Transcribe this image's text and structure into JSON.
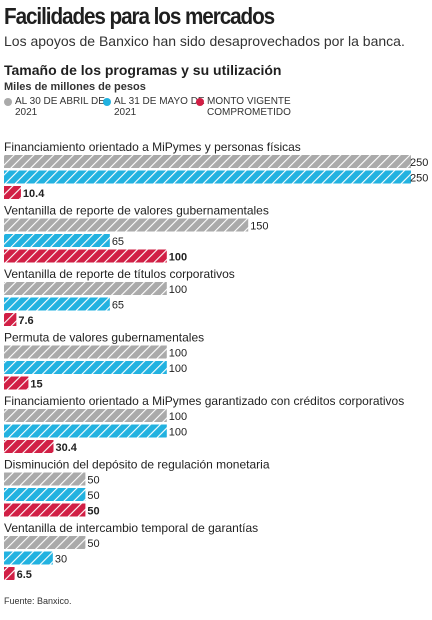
{
  "header": {
    "title": "Facilidades para los mercados",
    "subtitle": "Los apoyos de Banxico han sido desaprovechados por la banca.",
    "chart_title": "Tamaño de los programas y su utilización",
    "units": "Miles de millones de pesos"
  },
  "legend": [
    {
      "label": "Al 30 de abril de 2021",
      "color": "#aaaaaa"
    },
    {
      "label": "Al 31 de mayo de 2021",
      "color": "#22b2e0"
    },
    {
      "label": "Monto vigente comprometido",
      "color": "#d11f45"
    }
  ],
  "footer": {
    "source": "Fuente: Banxico."
  },
  "chart_data": {
    "type": "bar",
    "orientation": "horizontal",
    "value_labels_bold_for_third_series": true,
    "categories": [
      "Financiamiento orientado a MiPymes y personas físicas",
      "Ventanilla de reporte de valores gubernamentales",
      "Ventanilla de reporte de títulos corporativos",
      "Permuta de valores gubernamentales",
      "Financiamiento orientado a MiPymes garantizado con créditos corporativos",
      "Disminución del depósito de regulación monetaria",
      "Ventanilla de intercambio temporal de garantías"
    ],
    "series": [
      {
        "name": "Al 30 de abril de 2021",
        "color": "#aaaaaa",
        "values": [
          250,
          150,
          100,
          100,
          100,
          50,
          50
        ],
        "labels": [
          "250",
          "150",
          "100",
          "100",
          "100",
          "50",
          "50"
        ]
      },
      {
        "name": "Al 31 de mayo de 2021",
        "color": "#22b2e0",
        "values": [
          250,
          65,
          65,
          100,
          100,
          50,
          30
        ],
        "labels": [
          "250",
          "65",
          "65",
          "100",
          "100",
          "50",
          "30"
        ]
      },
      {
        "name": "Monto vigente comprometido",
        "color": "#d11f45",
        "values": [
          10.4,
          100,
          7.6,
          15,
          30.4,
          50,
          6.5
        ],
        "labels": [
          "10.4",
          "100",
          "7.6",
          "15",
          "30.4",
          "50",
          "6.5"
        ]
      }
    ],
    "xlim": [
      0,
      250
    ]
  }
}
